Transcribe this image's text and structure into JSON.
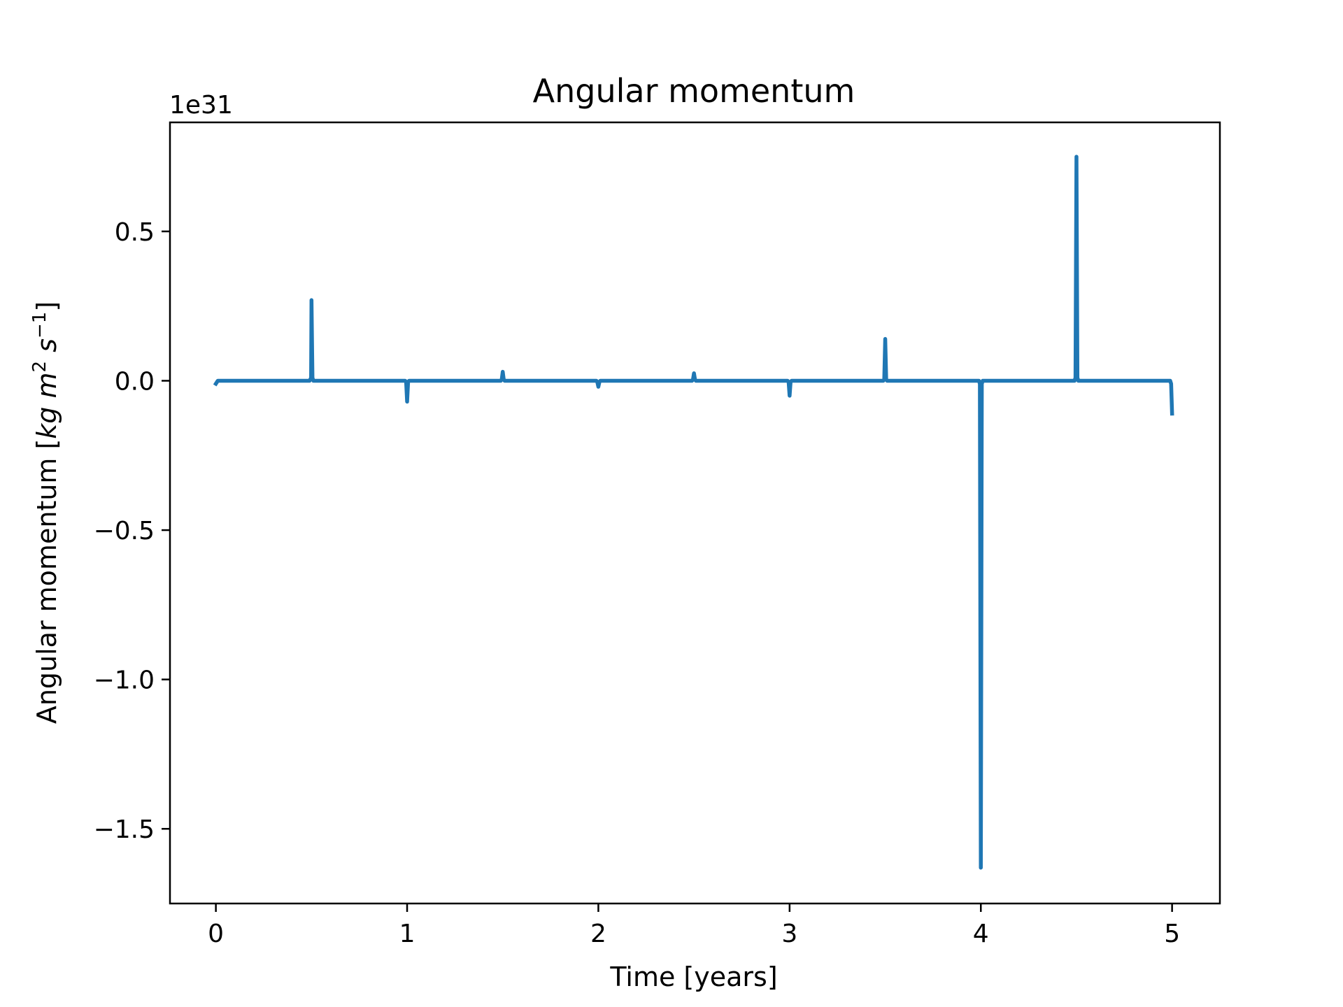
{
  "chart_data": {
    "type": "line",
    "title": "Angular momentum",
    "xlabel": "Time [years]",
    "ylabel": {
      "prefix": "Angular momentum [",
      "kg": "kg",
      "m": "m",
      "m_exp": "2",
      "s": "s",
      "s_exp": "−1",
      "suffix": "]"
    },
    "offset_label": "1e31",
    "xlim": [
      -0.24,
      5.25
    ],
    "ylim": [
      -1.75,
      0.865
    ],
    "x_ticks": [
      0,
      1,
      2,
      3,
      4,
      5
    ],
    "x_tick_labels": [
      "0",
      "1",
      "2",
      "3",
      "4",
      "5"
    ],
    "y_ticks": [
      0.5,
      0.0,
      -0.5,
      -1.0,
      -1.5
    ],
    "y_tick_labels": [
      "0.5",
      "0.0",
      "−0.5",
      "−1.0",
      "−1.5"
    ],
    "grid": false,
    "series": [
      {
        "color": "#1f77b4",
        "x": [
          0.0,
          0.01,
          0.49,
          0.498,
          0.5,
          0.505,
          0.51,
          0.99,
          0.995,
          1.0,
          1.005,
          1.01,
          1.49,
          1.495,
          1.5,
          1.505,
          1.51,
          1.99,
          1.995,
          2.0,
          2.005,
          2.01,
          2.49,
          2.495,
          2.5,
          2.505,
          2.51,
          2.99,
          2.995,
          3.0,
          3.005,
          3.01,
          3.49,
          3.495,
          3.5,
          3.505,
          3.51,
          3.99,
          3.995,
          4.0,
          4.005,
          4.01,
          4.49,
          4.495,
          4.5,
          4.505,
          4.51,
          4.99,
          4.995,
          5.0
        ],
        "y": [
          -0.01,
          0.0,
          0.0,
          0.01,
          0.27,
          0.01,
          0.0,
          0.0,
          -0.005,
          -0.07,
          -0.005,
          0.0,
          0.0,
          0.005,
          0.03,
          0.005,
          0.0,
          0.0,
          -0.005,
          -0.02,
          -0.005,
          0.0,
          0.0,
          0.005,
          0.025,
          0.005,
          0.0,
          0.0,
          -0.005,
          -0.05,
          -0.005,
          0.0,
          0.0,
          0.005,
          0.14,
          0.005,
          0.0,
          0.0,
          -0.01,
          -1.63,
          -0.01,
          0.0,
          0.0,
          0.01,
          0.75,
          0.01,
          0.0,
          0.0,
          -0.01,
          -0.11
        ]
      }
    ]
  }
}
